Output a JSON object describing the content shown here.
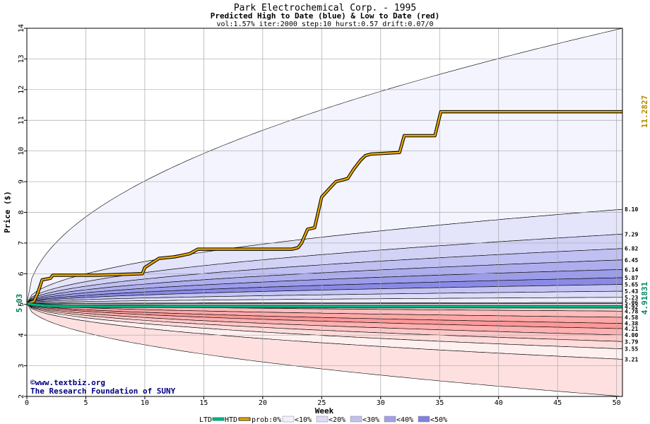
{
  "chart_data": {
    "type": "area",
    "title": "Park Electrochemical Corp. - 1995",
    "subtitle": "Predicted High to Date (blue) &  Low to Date (red)",
    "params": "vol:1.57% iter:2000 step:10 hurst:0.57 drift:0.07/0",
    "xlabel": "Week",
    "ylabel": "Price ($)",
    "xlim": [
      0,
      50.5
    ],
    "ylim": [
      2,
      14
    ],
    "x_ticks": [
      0,
      5,
      10,
      15,
      20,
      25,
      30,
      35,
      40,
      45,
      50
    ],
    "y_ticks": [
      2,
      3,
      4,
      5,
      6,
      7,
      8,
      9,
      10,
      11,
      12,
      13,
      14
    ],
    "start_price": 5.03,
    "start_label": "5.03",
    "htd_final_label": "11.2827",
    "ltd_final_label": "4.91831",
    "high_bands": [
      {
        "end": 14.0,
        "label": ""
      },
      {
        "end": 8.1,
        "label": "8.10"
      },
      {
        "end": 7.29,
        "label": "7.29"
      },
      {
        "end": 6.82,
        "label": "6.82"
      },
      {
        "end": 6.45,
        "label": "6.45"
      },
      {
        "end": 6.14,
        "label": "6.14"
      },
      {
        "end": 5.87,
        "label": "5.87"
      },
      {
        "end": 5.65,
        "label": "5.65"
      },
      {
        "end": 5.43,
        "label": "5.43"
      },
      {
        "end": 5.23,
        "label": "5.23"
      },
      {
        "end": 5.06,
        "label": "5.06"
      }
    ],
    "low_bands": [
      {
        "end": 4.92,
        "label": "4.92"
      },
      {
        "end": 4.78,
        "label": "4.78"
      },
      {
        "end": 4.58,
        "label": "4.58"
      },
      {
        "end": 4.38,
        "label": "4.38"
      },
      {
        "end": 4.21,
        "label": "4.21"
      },
      {
        "end": 4.0,
        "label": "4.00"
      },
      {
        "end": 3.79,
        "label": "3.79"
      },
      {
        "end": 3.55,
        "label": "3.55"
      },
      {
        "end": 3.21,
        "label": "3.21"
      },
      {
        "end": 2.0,
        "label": ""
      }
    ],
    "series": [
      {
        "name": "HTD",
        "color": "#e8a800",
        "points": [
          [
            0,
            5.03
          ],
          [
            0.6,
            5.1
          ],
          [
            0.9,
            5.35
          ],
          [
            1.3,
            5.8
          ],
          [
            2.0,
            5.85
          ],
          [
            2.2,
            5.95
          ],
          [
            6,
            5.95
          ],
          [
            9.8,
            6.0
          ],
          [
            10.0,
            6.2
          ],
          [
            10.6,
            6.35
          ],
          [
            11.2,
            6.5
          ],
          [
            12.5,
            6.55
          ],
          [
            13.8,
            6.65
          ],
          [
            14.5,
            6.8
          ],
          [
            17,
            6.8
          ],
          [
            22.5,
            6.8
          ],
          [
            23.0,
            6.85
          ],
          [
            23.3,
            7.0
          ],
          [
            23.8,
            7.45
          ],
          [
            24.4,
            7.5
          ],
          [
            24.7,
            8.0
          ],
          [
            25.0,
            8.5
          ],
          [
            25.6,
            8.75
          ],
          [
            26.2,
            9.0
          ],
          [
            27.2,
            9.1
          ],
          [
            27.7,
            9.4
          ],
          [
            28.3,
            9.7
          ],
          [
            28.7,
            9.85
          ],
          [
            29.2,
            9.9
          ],
          [
            31.6,
            9.95
          ],
          [
            32.0,
            10.5
          ],
          [
            34.6,
            10.5
          ],
          [
            35.1,
            11.28
          ],
          [
            50.5,
            11.28
          ]
        ]
      },
      {
        "name": "LTD",
        "color": "#00b890",
        "points": [
          [
            0,
            5.03
          ],
          [
            0.6,
            4.99
          ],
          [
            1.5,
            4.96
          ],
          [
            3,
            4.94
          ],
          [
            50.5,
            4.92
          ]
        ]
      }
    ],
    "legend": {
      "ltd": "LTD",
      "htd": "HTD",
      "prob": "prob:0%",
      "items": [
        "<10%",
        "<20%",
        "<30%",
        "<40%",
        "<50%"
      ],
      "colors": [
        "#f0f0ff",
        "#dcdcf8",
        "#c0c0f0",
        "#a0a0e8",
        "#8080e0"
      ]
    },
    "watermark": [
      "©www.textbiz.org",
      "The Research Foundation of SUNY"
    ]
  }
}
